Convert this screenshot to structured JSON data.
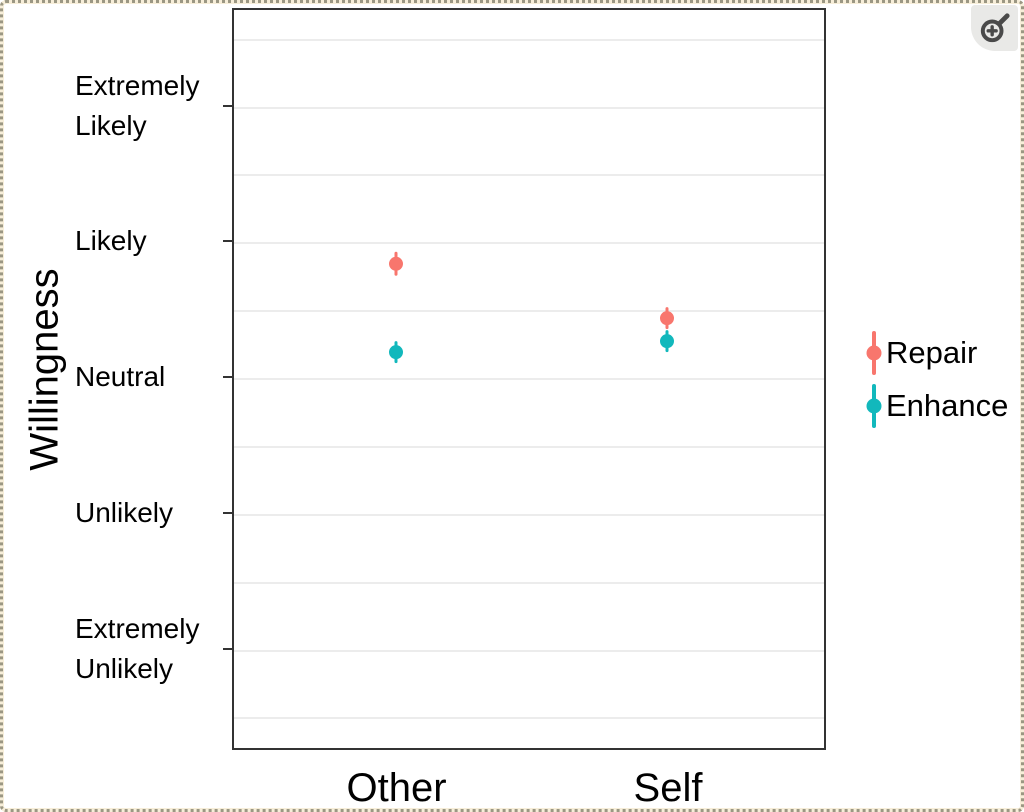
{
  "zoom_button": {
    "icon": "zoom-in-icon"
  },
  "frame": {
    "border_style": "dotted",
    "dot_color": "#9b9783",
    "backing_color": "#f7eed9"
  },
  "chart_data": {
    "type": "scatter",
    "subtype": "pointrange",
    "title": "",
    "xlabel": "",
    "ylabel": "Willingness",
    "categories": [
      "Other",
      "Self"
    ],
    "y_axis": {
      "ticks": [
        {
          "value": 5,
          "label": "Extremely\nLikely"
        },
        {
          "value": 4,
          "label": "Likely"
        },
        {
          "value": 3,
          "label": "Neutral"
        },
        {
          "value": 2,
          "label": "Unlikely"
        },
        {
          "value": 1,
          "label": "Extremely\nUnlikely"
        }
      ],
      "scale_note": "1 = Extremely Unlikely, 3 = Neutral, 5 = Extremely Likely",
      "minor_gridline_step": 0.5,
      "range": [
        0.45,
        5.55
      ]
    },
    "series": [
      {
        "name": "Repair",
        "color": "#F8766D",
        "values": [
          3.85,
          3.45
        ],
        "error": [
          0.09,
          0.08
        ]
      },
      {
        "name": "Enhance",
        "color": "#12B8BC",
        "values": [
          3.2,
          3.28
        ],
        "error": [
          0.08,
          0.08
        ]
      }
    ],
    "legend_position": "right",
    "grid": "horizontal-only",
    "panel_border_color": "#333333",
    "gridline_color": "#ececec",
    "background": "#ffffff"
  }
}
